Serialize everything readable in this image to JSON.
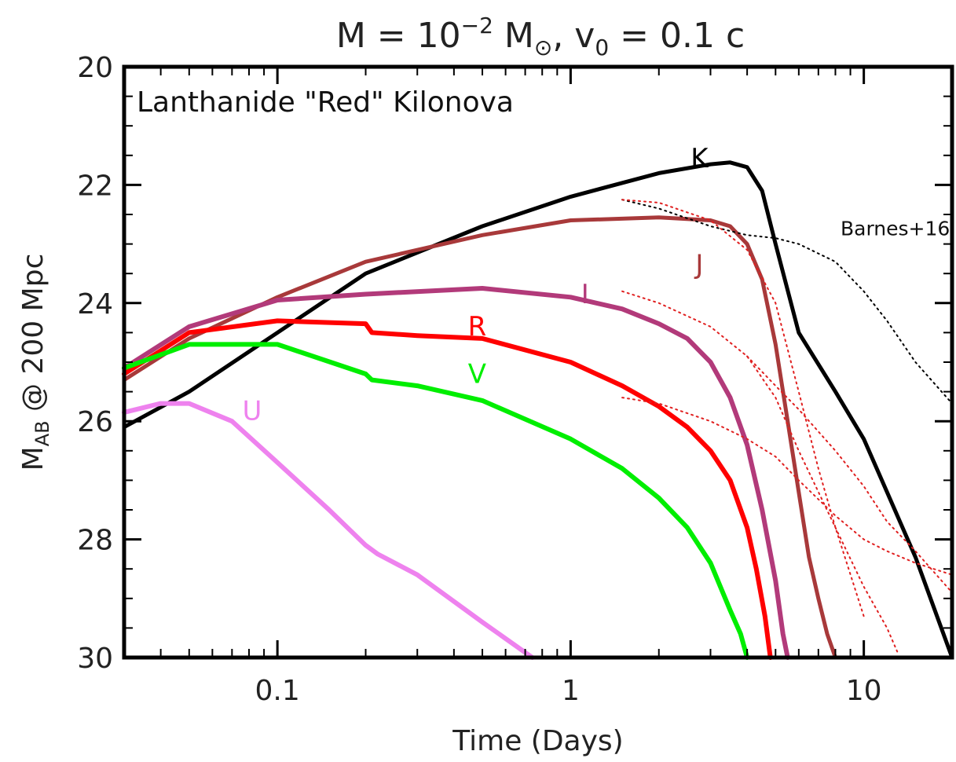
{
  "chart_data": {
    "type": "line",
    "title": {
      "text_a": "M  =  10",
      "text_a_sup": "−2",
      "text_b": " M",
      "text_b_sub": "⊙",
      "text_c": ",  v",
      "text_c_sub": "0",
      "text_d": "  =  0.1  c"
    },
    "annotation": "Lanthanide \"Red\" Kilonova",
    "xlabel": "Time (Days)",
    "ylabel_main": "M",
    "ylabel_sub": "AB",
    "ylabel_rest": " @ 200 Mpc",
    "xscale": "log",
    "xlim": [
      0.03,
      20
    ],
    "ylim": [
      30,
      20
    ],
    "y_inverted": true,
    "grid": false,
    "x_ticks": [
      {
        "value": 0.1,
        "label": "0.1"
      },
      {
        "value": 1,
        "label": "1"
      },
      {
        "value": 10,
        "label": "10"
      }
    ],
    "y_ticks": [
      {
        "value": 20,
        "label": "20"
      },
      {
        "value": 22,
        "label": "22"
      },
      {
        "value": 24,
        "label": "24"
      },
      {
        "value": 26,
        "label": "26"
      },
      {
        "value": 28,
        "label": "28"
      },
      {
        "value": 30,
        "label": "30"
      }
    ],
    "series": [
      {
        "name": "K",
        "color": "#000000",
        "width": 5,
        "label_at": [
          2.75,
          21.7
        ],
        "x": [
          0.03,
          0.05,
          0.1,
          0.2,
          0.5,
          1,
          2,
          3,
          3.5,
          4,
          4.5,
          5,
          6,
          8,
          10,
          12,
          15,
          20
        ],
        "y": [
          26.1,
          25.5,
          24.5,
          23.5,
          22.7,
          22.2,
          21.8,
          21.65,
          21.62,
          21.7,
          22.1,
          23.0,
          24.5,
          25.5,
          26.3,
          27.2,
          28.3,
          30.0
        ]
      },
      {
        "name": "J",
        "color": "#A8393A",
        "width": 5,
        "label_at": [
          2.75,
          23.5
        ],
        "x": [
          0.03,
          0.05,
          0.1,
          0.2,
          0.5,
          1,
          2,
          3,
          3.5,
          4,
          4.5,
          5,
          5.5,
          6,
          6.5,
          7,
          7.5,
          8
        ],
        "y": [
          25.3,
          24.6,
          23.9,
          23.3,
          22.85,
          22.6,
          22.55,
          22.6,
          22.7,
          23.0,
          23.6,
          24.7,
          26.0,
          27.2,
          28.3,
          29.0,
          29.6,
          30.0
        ]
      },
      {
        "name": "I",
        "color": "#B23A7A",
        "width": 6,
        "label_at": [
          1.12,
          24.0
        ],
        "x": [
          0.03,
          0.05,
          0.1,
          0.2,
          0.5,
          1,
          1.5,
          2,
          2.5,
          3,
          3.5,
          4,
          4.5,
          5,
          5.3,
          5.5
        ],
        "y": [
          25.1,
          24.4,
          23.95,
          23.85,
          23.75,
          23.9,
          24.1,
          24.35,
          24.6,
          25.0,
          25.6,
          26.4,
          27.5,
          28.7,
          29.6,
          30.0
        ]
      },
      {
        "name": "R",
        "color": "#FF0000",
        "width": 6,
        "label_at": [
          0.48,
          24.55
        ],
        "x": [
          0.03,
          0.05,
          0.1,
          0.2,
          0.21,
          0.3,
          0.5,
          1,
          1.5,
          2,
          2.5,
          3,
          3.5,
          4,
          4.3,
          4.6,
          4.8
        ],
        "y": [
          25.2,
          24.5,
          24.3,
          24.35,
          24.5,
          24.55,
          24.6,
          25.0,
          25.4,
          25.75,
          26.1,
          26.5,
          27.0,
          27.8,
          28.5,
          29.3,
          30.0
        ]
      },
      {
        "name": "V",
        "color": "#00EE00",
        "width": 6,
        "label_at": [
          0.48,
          25.35
        ],
        "x": [
          0.03,
          0.05,
          0.1,
          0.2,
          0.21,
          0.3,
          0.5,
          1,
          1.5,
          2,
          2.5,
          3,
          3.5,
          3.8,
          4.0
        ],
        "y": [
          25.1,
          24.7,
          24.7,
          25.2,
          25.3,
          25.4,
          25.65,
          26.3,
          26.8,
          27.3,
          27.8,
          28.4,
          29.2,
          29.6,
          30.0
        ]
      },
      {
        "name": "U",
        "color": "#EE82EE",
        "width": 6,
        "label_at": [
          0.082,
          25.98
        ],
        "x": [
          0.03,
          0.04,
          0.05,
          0.07,
          0.1,
          0.15,
          0.2,
          0.22,
          0.3,
          0.5,
          0.74
        ],
        "y": [
          25.85,
          25.7,
          25.7,
          26.0,
          26.7,
          27.5,
          28.1,
          28.25,
          28.6,
          29.4,
          30.0
        ]
      }
    ],
    "reference": {
      "name": "Barnes+16",
      "label_at": [
        12.8,
        22.85
      ],
      "style": "dotted",
      "curves": [
        {
          "color": "#000000",
          "x": [
            1.5,
            2,
            3,
            4,
            5,
            6,
            8,
            10,
            12,
            15,
            20
          ],
          "y": [
            22.25,
            22.4,
            22.7,
            22.85,
            22.9,
            23.0,
            23.3,
            23.8,
            24.3,
            25.0,
            25.7
          ]
        },
        {
          "color": "#E02020",
          "x": [
            1.5,
            2,
            3,
            4,
            5,
            6,
            7,
            8,
            10
          ],
          "y": [
            22.25,
            22.3,
            22.6,
            23.1,
            24.0,
            25.5,
            26.8,
            27.8,
            29.3
          ]
        },
        {
          "color": "#E02020",
          "x": [
            1.5,
            2,
            3,
            4,
            5,
            6,
            8,
            10,
            12,
            13
          ],
          "y": [
            23.8,
            24.0,
            24.4,
            24.9,
            25.6,
            26.5,
            27.8,
            28.8,
            29.5,
            29.9
          ]
        },
        {
          "color": "#E02020",
          "x": [
            1.5,
            2,
            3,
            4,
            5,
            6,
            8,
            10,
            12,
            15,
            20
          ],
          "y": [
            25.6,
            25.7,
            26.0,
            26.3,
            26.6,
            27.0,
            27.6,
            28.0,
            28.2,
            28.4,
            28.6
          ]
        },
        {
          "color": "#E02020",
          "x": [
            4,
            5,
            6,
            8,
            10,
            12,
            15,
            20
          ],
          "y": [
            24.9,
            25.4,
            25.8,
            26.5,
            27.1,
            27.7,
            28.2,
            28.9
          ]
        }
      ]
    }
  }
}
